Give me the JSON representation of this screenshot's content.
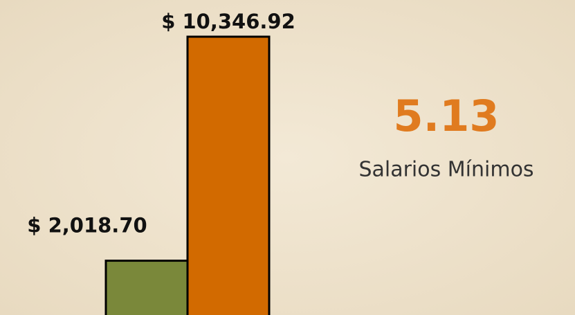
{
  "chart_data": {
    "type": "bar",
    "categories": [
      null,
      null
    ],
    "values": [
      2018.7,
      10346.92
    ],
    "value_labels": [
      "$ 2,018.70",
      "$ 10,346.92"
    ],
    "colors": [
      "#7a883a",
      "#d26a00"
    ],
    "annotations": [
      {
        "text": "5.13",
        "color": "#e07b1f"
      },
      {
        "text": "Salarios Mínimos",
        "color": "#333333"
      }
    ]
  }
}
